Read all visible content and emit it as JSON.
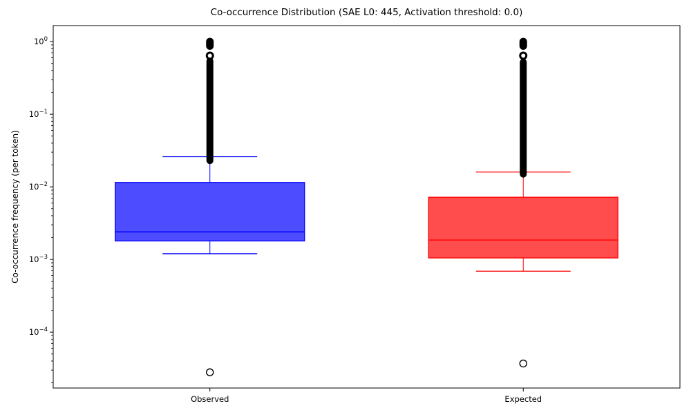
{
  "figure": {
    "title": "Co-occurrence Distribution (SAE L0: 445, Activation threshold: 0.0)",
    "ylabel": "Co-occurrence frequency (per token)"
  },
  "chart_data": {
    "type": "boxplot",
    "title": "Co-occurrence Distribution (SAE L0: 445, Activation threshold: 0.0)",
    "xlabel": "",
    "ylabel": "Co-occurrence frequency (per token)",
    "yscale": "log",
    "ylim": [
      1.7e-05,
      1.66
    ],
    "ytick_exponents": [
      0,
      -1,
      -2,
      -3,
      -4
    ],
    "grid": false,
    "legend": false,
    "categories": [
      "Observed",
      "Expected"
    ],
    "outlier_color": "#000000",
    "series": [
      {
        "name": "Observed",
        "edge_color": "#0000ff",
        "fill_color": "#4d4dff",
        "whisker_low": 0.0012,
        "q1": 0.0018,
        "median": 0.0024,
        "q3": 0.0115,
        "whisker_high": 0.026,
        "outliers_dense_range": [
          0.023,
          0.54
        ],
        "outlier_ring": 0.64,
        "outlier_top_cluster": [
          0.87,
          1.0
        ],
        "outlier_low": 2.8e-05
      },
      {
        "name": "Expected",
        "edge_color": "#ff0000",
        "fill_color": "#ff4d4d",
        "whisker_low": 0.00069,
        "q1": 0.00105,
        "median": 0.00185,
        "q3": 0.0072,
        "whisker_high": 0.016,
        "outliers_dense_range": [
          0.015,
          0.52
        ],
        "outlier_ring": 0.64,
        "outlier_top_cluster": [
          0.87,
          1.0
        ],
        "outlier_low": 3.7e-05
      }
    ]
  }
}
